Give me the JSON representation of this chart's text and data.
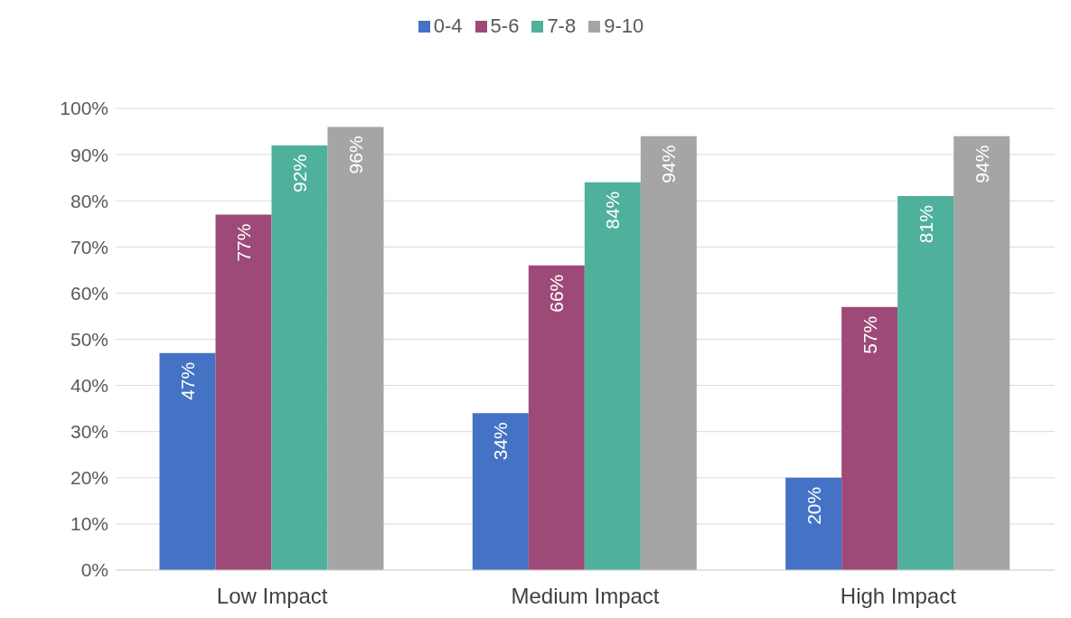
{
  "chart_data": {
    "type": "bar",
    "categories": [
      "Low Impact",
      "Medium Impact",
      "High Impact"
    ],
    "series": [
      {
        "name": "0-4",
        "color": "#4472c4",
        "values": [
          47,
          34,
          20
        ],
        "value_labels": [
          "47%",
          "34%",
          "20%"
        ]
      },
      {
        "name": "5-6",
        "color": "#9e4a78",
        "values": [
          77,
          66,
          57
        ],
        "value_labels": [
          "77%",
          "66%",
          "57%"
        ]
      },
      {
        "name": "7-8",
        "color": "#4fb09c",
        "values": [
          92,
          84,
          81
        ],
        "value_labels": [
          "92%",
          "84%",
          "81%"
        ]
      },
      {
        "name": "9-10",
        "color": "#a5a5a5",
        "values": [
          96,
          94,
          94
        ],
        "value_labels": [
          "96%",
          "94%",
          "94%"
        ]
      }
    ],
    "ylim": [
      0,
      100
    ],
    "yticks": [
      {
        "value": 0,
        "label": "0%"
      },
      {
        "value": 10,
        "label": "10%"
      },
      {
        "value": 20,
        "label": "20%"
      },
      {
        "value": 30,
        "label": "30%"
      },
      {
        "value": 40,
        "label": "40%"
      },
      {
        "value": 50,
        "label": "50%"
      },
      {
        "value": 60,
        "label": "60%"
      },
      {
        "value": 70,
        "label": "70%"
      },
      {
        "value": 80,
        "label": "80%"
      },
      {
        "value": 90,
        "label": "90%"
      },
      {
        "value": 100,
        "label": "100%"
      }
    ],
    "grid": "y",
    "legend": "top"
  }
}
